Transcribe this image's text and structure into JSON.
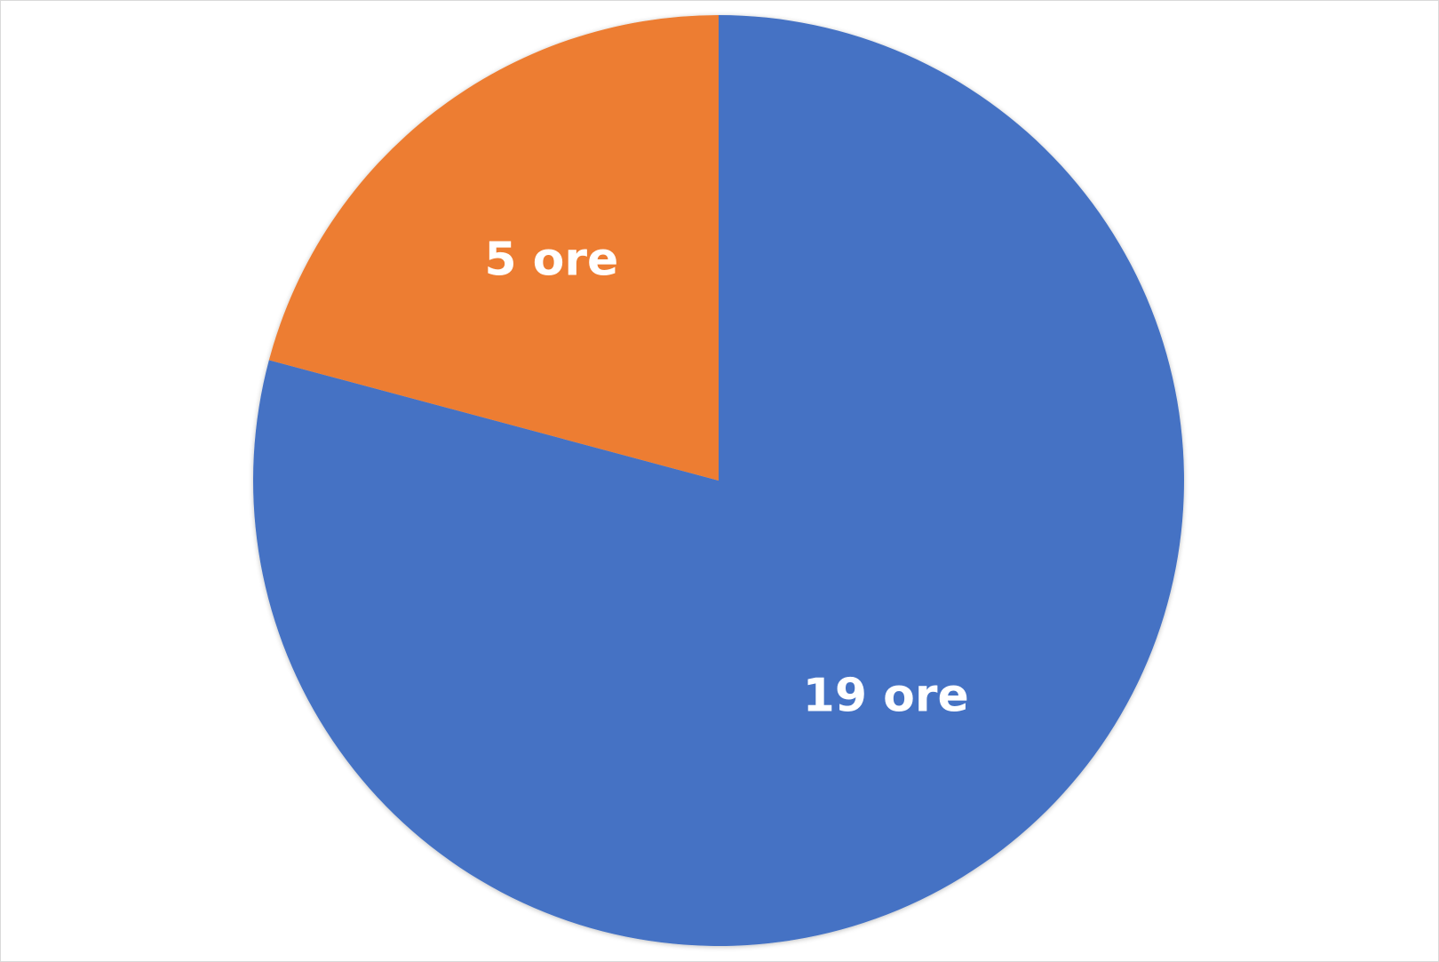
{
  "chart_data": {
    "type": "pie",
    "title": "",
    "slices": [
      {
        "value": 19,
        "label": "19 ore",
        "color": "#4472C4"
      },
      {
        "value": 5,
        "label": "5 ore",
        "color": "#ED7D31"
      }
    ]
  }
}
